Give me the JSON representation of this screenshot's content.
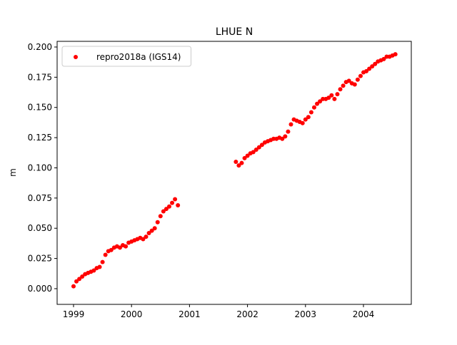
{
  "chart_data": {
    "type": "scatter",
    "title": "LHUE N",
    "ylabel": "m",
    "xlim": [
      1998.717,
      2004.825
    ],
    "ylim": [
      -0.013,
      0.2047
    ],
    "xticks": [
      1999,
      2000,
      2001,
      2002,
      2003,
      2004
    ],
    "yticks": [
      {
        "value": 0,
        "label": "0.000"
      },
      {
        "value": 0.025,
        "label": "0.025"
      },
      {
        "value": 0.05,
        "label": "0.050"
      },
      {
        "value": 0.075,
        "label": "0.075"
      },
      {
        "value": 0.1,
        "label": "0.100"
      },
      {
        "value": 0.125,
        "label": "0.125"
      },
      {
        "value": 0.15,
        "label": "0.150"
      },
      {
        "value": 0.175,
        "label": "0.175"
      },
      {
        "value": 0.2,
        "label": "0.200"
      }
    ],
    "legend": "upper left",
    "x": [
      1999.0,
      1999.05,
      1999.1,
      1999.15,
      1999.2,
      1999.25,
      1999.3,
      1999.35,
      1999.4,
      1999.45,
      1999.5,
      1999.55,
      1999.6,
      1999.65,
      1999.7,
      1999.75,
      1999.8,
      1999.85,
      1999.9,
      1999.95,
      2000.0,
      2000.05,
      2000.1,
      2000.15,
      2000.2,
      2000.25,
      2000.3,
      2000.35,
      2000.4,
      2000.45,
      2000.5,
      2000.55,
      2000.6,
      2000.65,
      2000.7,
      2000.75,
      2000.8,
      2001.8,
      2001.85,
      2001.9,
      2001.95,
      2002.0,
      2002.05,
      2002.1,
      2002.15,
      2002.2,
      2002.25,
      2002.3,
      2002.35,
      2002.4,
      2002.45,
      2002.5,
      2002.55,
      2002.6,
      2002.65,
      2002.7,
      2002.75,
      2002.8,
      2002.85,
      2002.9,
      2002.95,
      2003.0,
      2003.05,
      2003.1,
      2003.15,
      2003.2,
      2003.25,
      2003.3,
      2003.35,
      2003.4,
      2003.45,
      2003.5,
      2003.55,
      2003.6,
      2003.65,
      2003.7,
      2003.75,
      2003.8,
      2003.85,
      2003.9,
      2003.95,
      2004.0,
      2004.05,
      2004.1,
      2004.15,
      2004.2,
      2004.25,
      2004.3,
      2004.35,
      2004.4,
      2004.45,
      2004.5,
      2004.55
    ],
    "series": [
      {
        "name": "repro2018a (IGS14)",
        "color": "#ff0000",
        "values": [
          0.002,
          0.006,
          0.008,
          0.01,
          0.012,
          0.013,
          0.014,
          0.015,
          0.017,
          0.018,
          0.022,
          0.028,
          0.031,
          0.032,
          0.034,
          0.035,
          0.034,
          0.036,
          0.035,
          0.038,
          0.039,
          0.04,
          0.041,
          0.042,
          0.041,
          0.043,
          0.046,
          0.048,
          0.05,
          0.055,
          0.06,
          0.064,
          0.066,
          0.068,
          0.071,
          0.074,
          0.069,
          0.105,
          0.102,
          0.104,
          0.108,
          0.11,
          0.112,
          0.113,
          0.115,
          0.117,
          0.119,
          0.121,
          0.122,
          0.123,
          0.124,
          0.124,
          0.125,
          0.124,
          0.126,
          0.13,
          0.136,
          0.14,
          0.139,
          0.138,
          0.137,
          0.14,
          0.142,
          0.146,
          0.15,
          0.153,
          0.155,
          0.157,
          0.157,
          0.158,
          0.16,
          0.157,
          0.161,
          0.165,
          0.168,
          0.171,
          0.172,
          0.17,
          0.169,
          0.173,
          0.176,
          0.179,
          0.18,
          0.182,
          0.184,
          0.186,
          0.188,
          0.189,
          0.19,
          0.192,
          0.192,
          0.193,
          0.194
        ]
      }
    ]
  }
}
